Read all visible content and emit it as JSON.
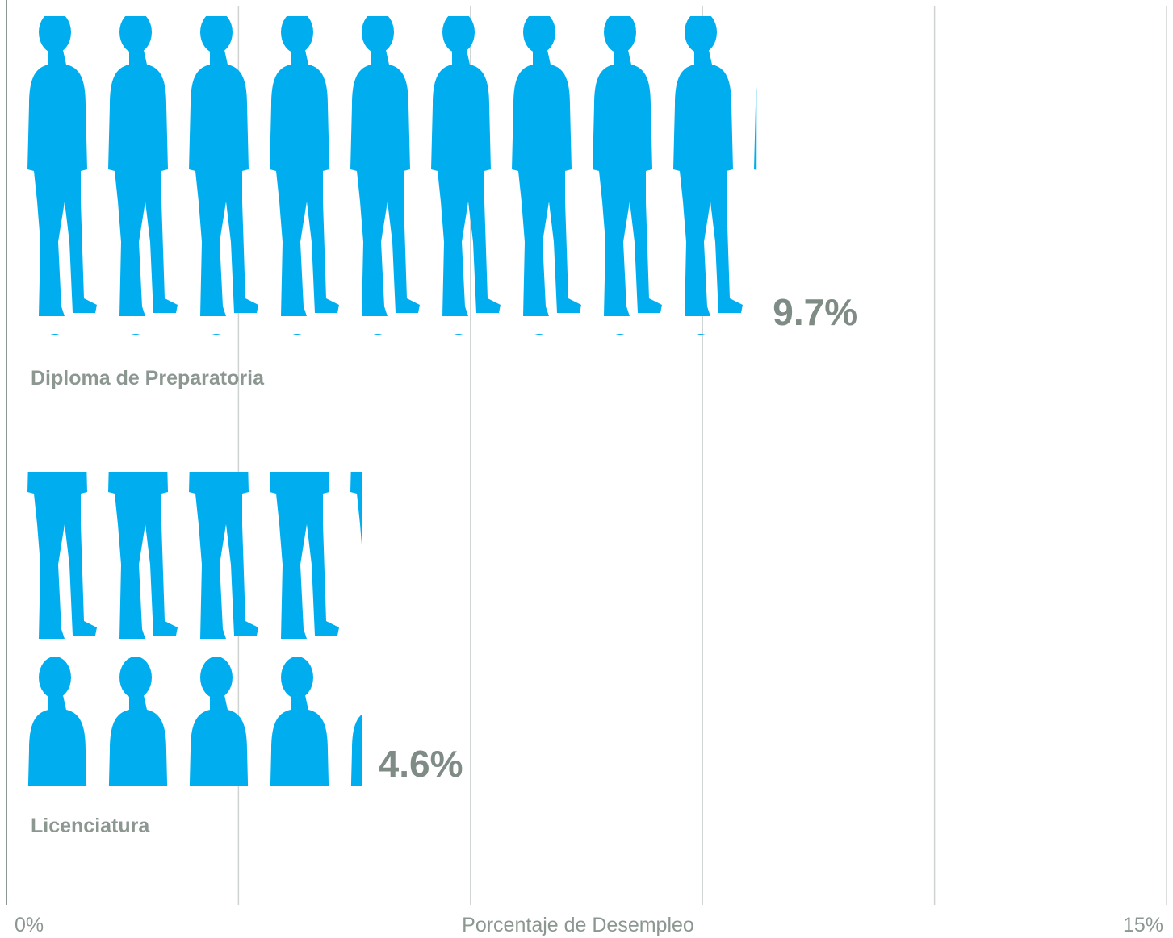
{
  "chart_data": {
    "type": "pictograph-bar",
    "categories": [
      "Diploma de Preparatoria",
      "Licenciatura"
    ],
    "values": [
      9.7,
      4.6
    ],
    "value_labels": [
      "9.7%",
      "4.6%"
    ],
    "color": "#00aeef",
    "x_label": "Porcentaje de Desempleo",
    "xlim": [
      0,
      15
    ],
    "xticks": [
      {
        "value": 0,
        "label": "0%"
      },
      {
        "value": 3,
        "label": null
      },
      {
        "value": 6,
        "label": null
      },
      {
        "value": 9,
        "label": null
      },
      {
        "value": 12,
        "label": null
      },
      {
        "value": 15,
        "label": "15%"
      }
    ],
    "grid": true
  }
}
